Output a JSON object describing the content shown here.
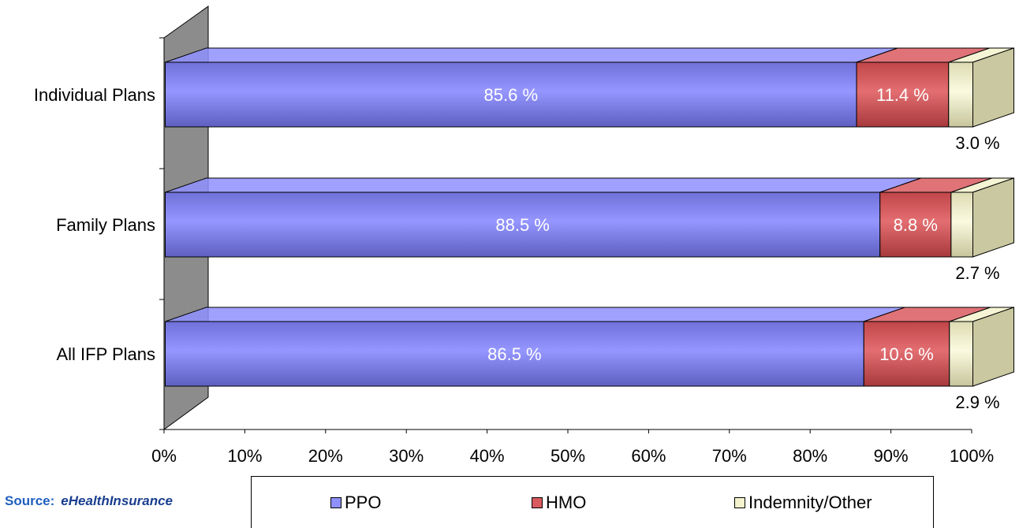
{
  "chart_data": {
    "type": "bar",
    "orientation": "horizontal",
    "stacked": true,
    "percent_stacked": true,
    "style": "3d",
    "categories": [
      "Individual Plans",
      "Family Plans",
      "All IFP Plans"
    ],
    "series": [
      {
        "name": "PPO",
        "values": [
          85.6,
          88.5,
          86.5
        ],
        "labels": [
          "85.6 %",
          "88.5 %",
          "86.5 %"
        ],
        "color": "#8f90ff"
      },
      {
        "name": "HMO",
        "values": [
          11.4,
          8.8,
          10.6
        ],
        "labels": [
          "11.4 %",
          "8.8 %",
          "10.6 %"
        ],
        "color": "#d95b5f"
      },
      {
        "name": "Indemnity/Other",
        "values": [
          3.0,
          2.7,
          2.9
        ],
        "labels": [
          "3.0 %",
          "2.7 %",
          "2.9 %"
        ],
        "color": "#f3f2cc"
      }
    ],
    "xlim": [
      0,
      100
    ],
    "x_ticks": [
      "0%",
      "10%",
      "20%",
      "30%",
      "40%",
      "50%",
      "60%",
      "70%",
      "80%",
      "90%",
      "100%"
    ],
    "legend_position": "bottom"
  },
  "source": {
    "label": "Source:",
    "brand": "eHealthInsurance"
  }
}
